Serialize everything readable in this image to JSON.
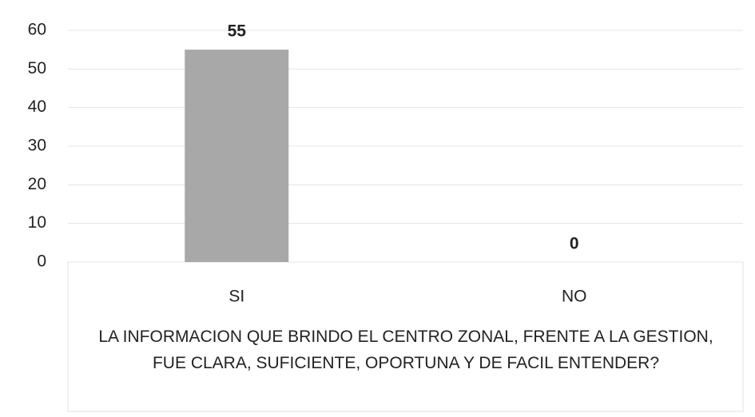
{
  "chart_data": {
    "type": "bar",
    "x_label": "LA INFORMACION QUE BRINDO EL CENTRO ZONAL, FRENTE A LA GESTION, FUE CLARA, SUFICIENTE, OPORTUNA Y DE FACIL ENTENDER?",
    "categories": [
      "SI",
      "NO"
    ],
    "values": [
      55,
      0
    ],
    "color": "#a8a8a8",
    "ylim": [
      0,
      60
    ],
    "yticks": [
      0,
      10,
      20,
      30,
      40,
      50,
      60
    ],
    "grid": true,
    "data_labels": true
  }
}
